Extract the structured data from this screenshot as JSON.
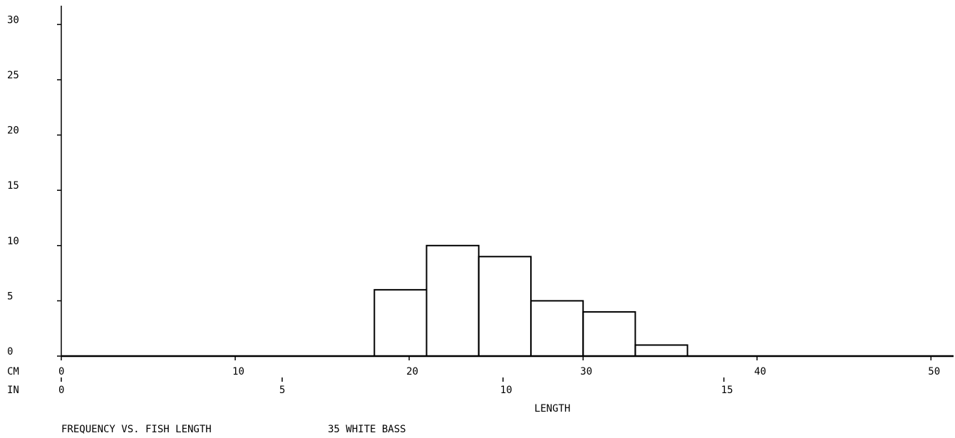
{
  "chart_data": {
    "type": "histogram",
    "title": "FREQUENCY VS. FISH LENGTH",
    "subtitle": "35 WHITE BASS",
    "xlabel": "LENGTH",
    "x_unit_label": "CM",
    "x2_unit_label": "IN",
    "bins": [
      18,
      21,
      24,
      27,
      30,
      33,
      36
    ],
    "values": [
      6,
      10,
      9,
      5,
      4,
      1
    ],
    "color": "#000000",
    "xlim": [
      0,
      51.3
    ],
    "xticks": [
      0,
      10,
      20,
      30,
      40,
      50
    ],
    "x2lim": [
      0,
      20.2
    ],
    "x2ticks": [
      0,
      5,
      10,
      15
    ],
    "ylim": [
      0,
      31.7
    ],
    "yticks": [
      0,
      5,
      10,
      15,
      20,
      25,
      30
    ]
  }
}
